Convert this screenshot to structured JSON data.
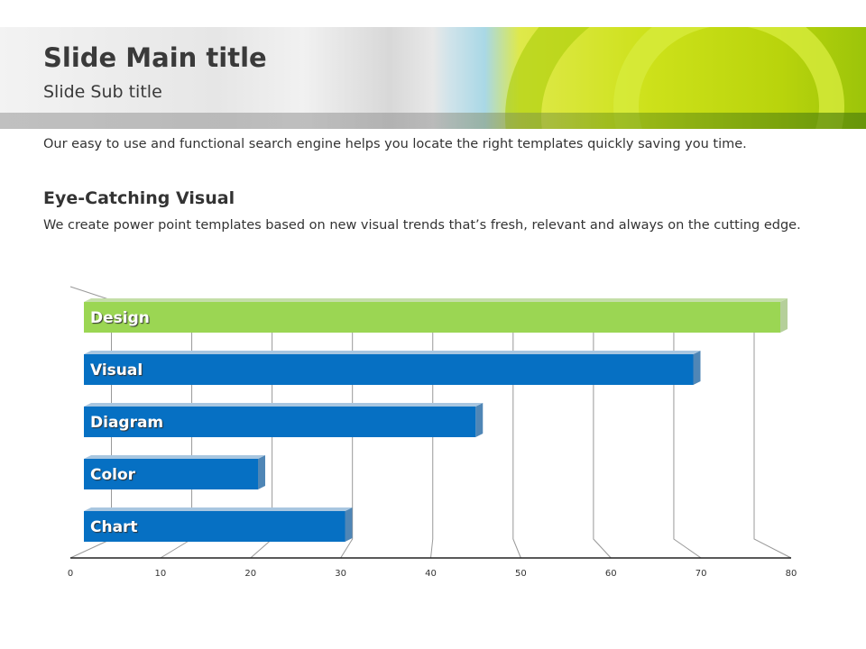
{
  "header": {
    "title": "Slide Main title",
    "subtitle": "Slide Sub title"
  },
  "intro": "Our easy to use and functional search engine helps you locate the right templates quickly saving you time.",
  "section": {
    "heading": "Eye-Catching Visual",
    "body": "We create power point templates based on new visual trends that’s fresh, relevant and always on the cutting edge."
  },
  "colors": {
    "highlight": "#9bd653",
    "bar": "#0670c3",
    "grid": "#888888"
  },
  "chart_data": {
    "type": "bar",
    "orientation": "horizontal",
    "style": "3d",
    "categories": [
      "Design",
      "Visual",
      "Diagram",
      "Color",
      "Chart"
    ],
    "values": [
      80,
      70,
      45,
      20,
      30
    ],
    "highlighted": "Design",
    "xlim": [
      0,
      80
    ],
    "ticks": [
      "0",
      "10",
      "20",
      "30",
      "40",
      "50",
      "60",
      "70",
      "80"
    ],
    "tick_values": [
      0,
      10,
      20,
      30,
      40,
      50,
      60,
      70,
      80
    ],
    "grid": true,
    "xlabel": "",
    "ylabel": "",
    "title": ""
  }
}
